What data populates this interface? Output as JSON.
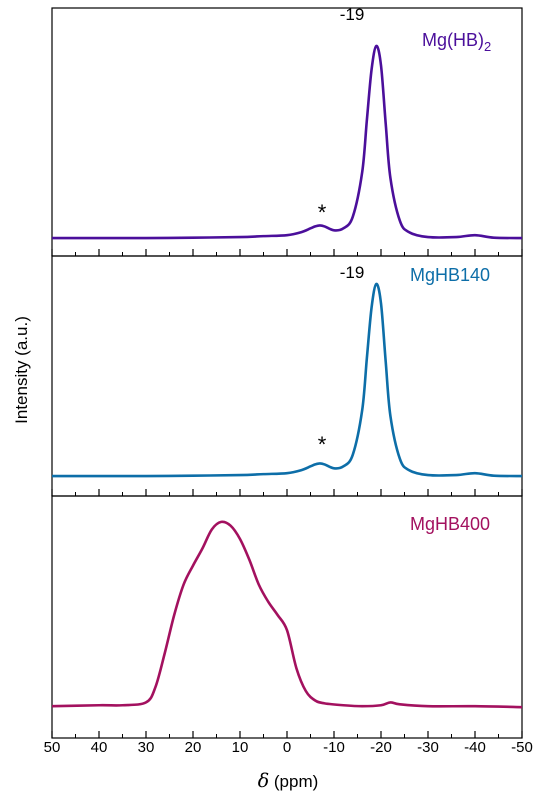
{
  "chart_data": {
    "type": "line",
    "xlabel_symbol": "δ",
    "xlabel_unit": " (ppm)",
    "ylabel": "Intensity (a.u.)",
    "xlim": [
      50,
      -50
    ],
    "xticks": [
      50,
      40,
      30,
      20,
      10,
      0,
      -10,
      -20,
      -30,
      -40,
      -50
    ],
    "xtick_labels": [
      "50",
      "40",
      "30",
      "20",
      "10",
      "0",
      "-10",
      "-20",
      "-30",
      "-40",
      "-50"
    ],
    "panels": [
      {
        "label_main": "Mg(HB)",
        "label_sub": "2",
        "color": "#4b0f9b",
        "peak_label": "-19",
        "asterisk": "*",
        "series": {
          "x": [
            50,
            40,
            30,
            20,
            10,
            5,
            0,
            -3,
            -5,
            -6,
            -7,
            -8,
            -10,
            -12,
            -14,
            -16,
            -17,
            -18,
            -19,
            -20,
            -21,
            -22,
            -24,
            -26,
            -30,
            -36,
            -40,
            -44,
            -50
          ],
          "y": [
            0.01,
            0.01,
            0.01,
            0.012,
            0.015,
            0.02,
            0.025,
            0.04,
            0.06,
            0.07,
            0.075,
            0.07,
            0.05,
            0.06,
            0.12,
            0.35,
            0.62,
            0.88,
            1.0,
            0.9,
            0.6,
            0.32,
            0.1,
            0.04,
            0.015,
            0.015,
            0.025,
            0.012,
            0.01
          ]
        }
      },
      {
        "label_main": "MgHB140",
        "label_sub": "",
        "color": "#0d6ea8",
        "peak_label": "-19",
        "asterisk": "*",
        "series": {
          "x": [
            50,
            40,
            30,
            20,
            10,
            5,
            0,
            -3,
            -5,
            -6,
            -7,
            -8,
            -10,
            -12,
            -14,
            -16,
            -17,
            -18,
            -19,
            -20,
            -21,
            -22,
            -24,
            -26,
            -30,
            -36,
            -40,
            -44,
            -50
          ],
          "y": [
            0.01,
            0.01,
            0.01,
            0.012,
            0.015,
            0.02,
            0.025,
            0.04,
            0.06,
            0.07,
            0.075,
            0.07,
            0.05,
            0.06,
            0.12,
            0.35,
            0.62,
            0.88,
            1.0,
            0.9,
            0.6,
            0.32,
            0.1,
            0.04,
            0.015,
            0.015,
            0.025,
            0.012,
            0.01
          ]
        }
      },
      {
        "label_main": "MgHB400",
        "label_sub": "",
        "color": "#a3115f",
        "peak_label": "",
        "asterisk": "",
        "series": {
          "x": [
            50,
            40,
            35,
            30,
            28,
            26,
            24,
            22,
            20,
            18,
            16,
            14,
            12,
            10,
            8,
            6,
            4,
            2,
            0,
            -2,
            -4,
            -6,
            -8,
            -12,
            -16,
            -20,
            -22,
            -24,
            -30,
            -40,
            -50
          ],
          "y": [
            0.02,
            0.025,
            0.025,
            0.04,
            0.12,
            0.3,
            0.5,
            0.66,
            0.76,
            0.85,
            0.95,
            0.99,
            0.97,
            0.9,
            0.79,
            0.66,
            0.57,
            0.5,
            0.42,
            0.22,
            0.1,
            0.05,
            0.035,
            0.025,
            0.02,
            0.025,
            0.04,
            0.03,
            0.02,
            0.02,
            0.015
          ]
        }
      }
    ]
  }
}
